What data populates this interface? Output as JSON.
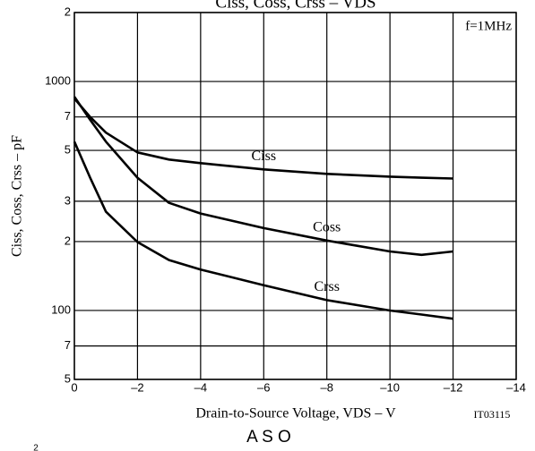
{
  "chart_data": {
    "type": "line",
    "title": "Ciss, Coss, Crss – VDS",
    "xlabel": "Drain-to-Source Voltage, VDS – V",
    "ylabel": "Ciss, Coss, Crss – pF",
    "note": "f=1MHz",
    "figure_id": "IT03115",
    "next_title": "A S O",
    "next_tick": "2",
    "x": [
      0,
      -0.5,
      -1,
      -2,
      -3,
      -4,
      -6,
      -8,
      -10,
      -11,
      -12
    ],
    "series": [
      {
        "name": "Ciss",
        "color": "#000000",
        "values": [
          842,
          700,
          598,
          490,
          456,
          440,
          413,
          395,
          384,
          380,
          377
        ]
      },
      {
        "name": "Coss",
        "color": "#000000",
        "values": [
          858,
          680,
          546,
          380,
          295,
          265,
          229,
          202,
          181,
          175,
          181
        ]
      },
      {
        "name": "Crss",
        "color": "#000000",
        "values": [
          546,
          380,
          270,
          199,
          166,
          151,
          129,
          111,
          100,
          96,
          92
        ]
      }
    ],
    "xlim": [
      0,
      -14
    ],
    "xticks": [
      0,
      {
        "value": -2,
        "label": "–2"
      },
      {
        "value": -4,
        "label": "–4"
      },
      {
        "value": -6,
        "label": "–6"
      },
      {
        "value": -8,
        "label": "–8"
      },
      {
        "value": -10,
        "label": "–10"
      },
      {
        "value": -12,
        "label": "–12"
      },
      {
        "value": -14,
        "label": "–14"
      }
    ],
    "ylim": [
      50,
      2000
    ],
    "yscale": "log",
    "yticks": [
      {
        "value": 2000,
        "label": "2"
      },
      1000,
      {
        "value": 700,
        "label": "7"
      },
      {
        "value": 500,
        "label": "5"
      },
      {
        "value": 300,
        "label": "3"
      },
      {
        "value": 200,
        "label": "2"
      },
      100,
      {
        "value": 70,
        "label": "7"
      },
      {
        "value": 50,
        "label": "5"
      }
    ],
    "grid": true
  }
}
